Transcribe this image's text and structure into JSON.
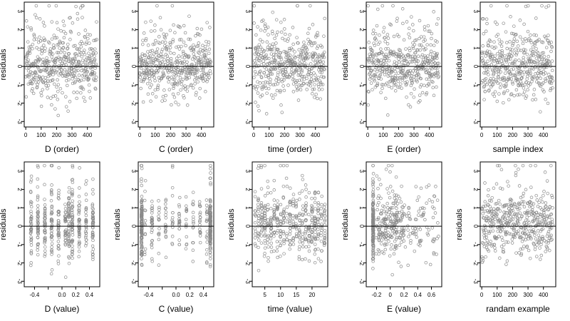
{
  "figure": {
    "background": "#ffffff",
    "point_color": "#8a8a8a",
    "axis_color": "#000000"
  },
  "chart_data": [
    {
      "type": "scatter",
      "xlabel": "D (order)",
      "ylabel": "residuals",
      "xlim": [
        -10,
        480
      ],
      "ylim": [
        -3.3,
        3.5
      ],
      "xticks": [
        0,
        100,
        200,
        300,
        400
      ],
      "yticks": [
        -3,
        -2,
        -1,
        0,
        1,
        2,
        3
      ],
      "hline": 0,
      "n": 460,
      "pattern": "order"
    },
    {
      "type": "scatter",
      "xlabel": "C (order)",
      "ylabel": "residuals",
      "xlim": [
        -10,
        480
      ],
      "ylim": [
        -3.3,
        3.5
      ],
      "xticks": [
        0,
        100,
        200,
        300,
        400
      ],
      "yticks": [
        -3,
        -2,
        -1,
        0,
        1,
        2,
        3
      ],
      "hline": 0,
      "n": 460,
      "pattern": "order"
    },
    {
      "type": "scatter",
      "xlabel": "time (order)",
      "ylabel": "residuals",
      "xlim": [
        -10,
        480
      ],
      "ylim": [
        -3.3,
        3.5
      ],
      "xticks": [
        0,
        100,
        200,
        300,
        400
      ],
      "yticks": [
        -3,
        -2,
        -1,
        0,
        1,
        2,
        3
      ],
      "hline": 0,
      "n": 460,
      "pattern": "order"
    },
    {
      "type": "scatter",
      "xlabel": "E (order)",
      "ylabel": "residuals",
      "xlim": [
        -10,
        480
      ],
      "ylim": [
        -3.3,
        3.5
      ],
      "xticks": [
        0,
        100,
        200,
        300,
        400
      ],
      "yticks": [
        -3,
        -2,
        -1,
        0,
        1,
        2,
        3
      ],
      "hline": 0,
      "n": 460,
      "pattern": "order"
    },
    {
      "type": "scatter",
      "xlabel": "sample index",
      "ylabel": "residuals",
      "xlim": [
        -10,
        480
      ],
      "ylim": [
        -3.3,
        3.5
      ],
      "xticks": [
        0,
        100,
        200,
        300,
        400
      ],
      "yticks": [
        -3,
        -2,
        -1,
        0,
        1,
        2,
        3
      ],
      "hline": 0,
      "n": 460,
      "pattern": "order"
    },
    {
      "type": "scatter",
      "xlabel": "D (value)",
      "ylabel": "residuals",
      "xlim": [
        -0.55,
        0.55
      ],
      "ylim": [
        -3.3,
        3.5
      ],
      "xticks": [
        -0.4,
        -0.2,
        0.0,
        0.2,
        0.4
      ],
      "xtick_labels": [
        "-0.4",
        "",
        "0.0",
        "0.2",
        "0.4"
      ],
      "yticks": [
        -3,
        -2,
        -1,
        0,
        1,
        2,
        3
      ],
      "hline": 0,
      "n": 460,
      "pattern": "discrete",
      "levels": [
        -0.45,
        -0.35,
        -0.25,
        -0.15,
        -0.05,
        0.05,
        0.1,
        0.15,
        0.25,
        0.35,
        0.45
      ]
    },
    {
      "type": "scatter",
      "xlabel": "C (value)",
      "ylabel": "residuals",
      "xlim": [
        -0.55,
        0.55
      ],
      "ylim": [
        -3.3,
        3.5
      ],
      "xticks": [
        -0.4,
        -0.2,
        0.0,
        0.2,
        0.4
      ],
      "xtick_labels": [
        "-0.4",
        "",
        "0.0",
        "0.2",
        "0.4"
      ],
      "yticks": [
        -3,
        -2,
        -1,
        0,
        1,
        2,
        3
      ],
      "hline": 0,
      "n": 460,
      "pattern": "edges",
      "levels": [
        -0.5,
        0.5
      ]
    },
    {
      "type": "scatter",
      "xlabel": "time (value)",
      "ylabel": "residuals",
      "xlim": [
        1,
        25
      ],
      "ylim": [
        -3.3,
        3.5
      ],
      "xticks": [
        5,
        10,
        15,
        20
      ],
      "yticks": [
        -3,
        -2,
        -1,
        0,
        1,
        2,
        3
      ],
      "hline": 0,
      "n": 460,
      "pattern": "discrete",
      "levels": [
        2,
        3,
        4,
        5,
        6,
        7,
        8,
        9,
        10,
        11,
        12,
        13,
        14,
        15,
        16,
        17,
        18,
        19,
        20,
        21,
        22,
        23,
        24
      ]
    },
    {
      "type": "scatter",
      "xlabel": "E (value)",
      "ylabel": "residuals",
      "xlim": [
        -0.35,
        0.75
      ],
      "ylim": [
        -3.3,
        3.5
      ],
      "xticks": [
        -0.2,
        0.0,
        0.2,
        0.4,
        0.6
      ],
      "yticks": [
        -3,
        -2,
        -1,
        0,
        1,
        2,
        3
      ],
      "hline": 0,
      "n": 460,
      "pattern": "skewed"
    },
    {
      "type": "scatter",
      "xlabel": "randam example",
      "ylabel": "residuals",
      "xlim": [
        -10,
        480
      ],
      "ylim": [
        -3.3,
        3.5
      ],
      "xticks": [
        0,
        100,
        200,
        300,
        400
      ],
      "yticks": [
        -3,
        -2,
        -1,
        0,
        1,
        2,
        3
      ],
      "hline": 0,
      "n": 460,
      "pattern": "order"
    }
  ]
}
